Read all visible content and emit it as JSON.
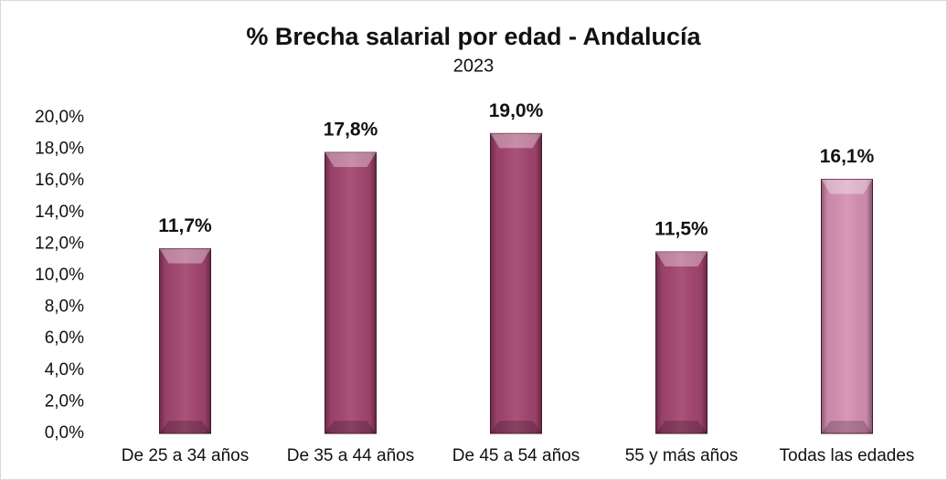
{
  "chart_data": {
    "type": "bar",
    "title": "% Brecha salarial por edad - Andalucía",
    "subtitle": "2023",
    "categories": [
      "De 25 a 34 años",
      "De 35 a 44 años",
      "De 45 a 54 años",
      "55 y más años",
      "Todas las edades"
    ],
    "values": [
      11.7,
      17.8,
      19.0,
      11.5,
      16.1
    ],
    "value_labels": [
      "11,7%",
      "17,8%",
      "19,0%",
      "11,5%",
      "16,1%"
    ],
    "colors": [
      "#a2446f",
      "#a2446f",
      "#a2446f",
      "#a2446f",
      "#d58fb2"
    ],
    "ylim": [
      0,
      20
    ],
    "yticks": [
      {
        "value": 0,
        "label": "0,0%"
      },
      {
        "value": 2,
        "label": "2,0%"
      },
      {
        "value": 4,
        "label": "4,0%"
      },
      {
        "value": 6,
        "label": "6,0%"
      },
      {
        "value": 8,
        "label": "8,0%"
      },
      {
        "value": 10,
        "label": "10,0%"
      },
      {
        "value": 12,
        "label": "12,0%"
      },
      {
        "value": 14,
        "label": "14,0%"
      },
      {
        "value": 16,
        "label": "16,0%"
      },
      {
        "value": 18,
        "label": "18,0%"
      },
      {
        "value": 20,
        "label": "20,0%"
      }
    ],
    "grid": false
  }
}
